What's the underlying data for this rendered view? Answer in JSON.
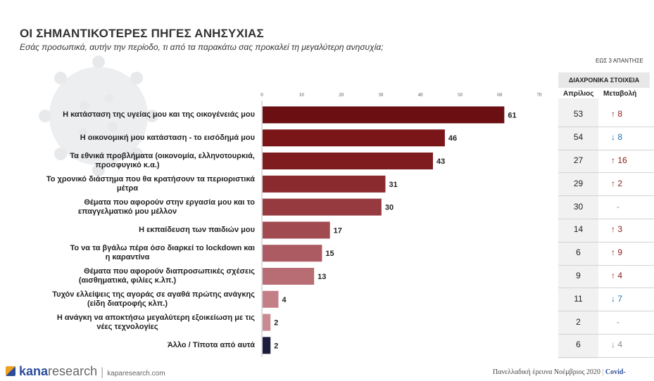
{
  "header": {
    "title": "ΟΙ ΣΗΜΑΝΤΙΚΟΤΕΡΕΣ ΠΗΓΕΣ ΑΝΗΣΥΧΙΑΣ",
    "subtitle": "Εσάς προσωπικά, αυτήν την περίοδο, τι από τα παρακάτω σας προκαλεί τη μεγαλύτερη ανησυχία;",
    "note": "ΕΩΣ 3 ΑΠΑΝΤΗΣΕ"
  },
  "history": {
    "title": "ΔΙΑΧΡΟΝΙΚΑ ΣΤΟΙΧΕΙΑ",
    "col_april": "Απρίλιος",
    "col_change": "Μεταβολή"
  },
  "colors": {
    "up": "#8b1a1a",
    "down": "#1f6fb5",
    "neutral": "#888888",
    "last_bar": "#1c1c3c"
  },
  "chart_data": {
    "type": "bar",
    "orientation": "horizontal",
    "xlim": [
      0,
      70
    ],
    "ticks": [
      0,
      10,
      20,
      30,
      40,
      50,
      60,
      70
    ],
    "categories": [
      "Η κατάσταση της υγείας μου και της οικογένειάς μου",
      "Η οικονομική μου κατάσταση - το εισόδημά μου",
      "Τα εθνικά προβλήματα (οικονομία, ελληνοτουρκιά, προσφυγικό κ.α.)",
      "Το χρονικό διάστημα που θα κρατήσουν τα περιοριστικά μέτρα",
      "Θέματα που αφορούν στην εργασία μου και το επαγγελματικό μου μέλλον",
      "Η εκπαίδευση των παιδιών μου",
      "Το να τα βγάλω πέρα όσο διαρκεί το lockdown και η καραντίνα",
      "Θέματα που αφορούν διαπροσωπικές σχέσεις (αισθηματικά, φιλίες κ.λπ.)",
      "Τυχόν ελλείψεις της αγοράς σε αγαθά πρώτης ανάγκης (είδη διατροφής κλπ.)",
      "Η ανάγκη να αποκτήσω μεγαλύτερη εξοικείωση με τις νέες τεχνολογίες",
      "Άλλο / Τίποτα από αυτά"
    ],
    "label_lines": [
      [
        "Η κατάσταση της υγείας μου και της οικογένειάς μου"
      ],
      [
        "Η οικονομική μου κατάσταση - το εισόδημά μου"
      ],
      [
        "Τα εθνικά προβλήματα (οικονομία, ελληνοτουρκιά,",
        "προσφυγικό κ.α.)"
      ],
      [
        "Το χρονικό διάστημα που θα κρατήσουν τα περιοριστικά",
        "μέτρα"
      ],
      [
        "Θέματα που αφορούν στην εργασία μου και το",
        "επαγγελματικό μου μέλλον"
      ],
      [
        "Η εκπαίδευση των παιδιών μου"
      ],
      [
        "Το να τα βγάλω πέρα όσο διαρκεί το lockdown και",
        "η καραντίνα"
      ],
      [
        "Θέματα που αφορούν διαπροσωπικές σχέσεις",
        "(αισθηματικά, φιλίες κ.λπ.)"
      ],
      [
        "Τυχόν ελλείψεις της αγοράς σε αγαθά πρώτης ανάγκης",
        "(είδη διατροφής κλπ.)"
      ],
      [
        "Η ανάγκη να αποκτήσω μεγαλύτερη εξοικείωση με τις",
        "νέες τεχνολογίες"
      ],
      [
        "Άλλο / Τίποτα από αυτά"
      ]
    ],
    "values": [
      61,
      46,
      43,
      31,
      30,
      17,
      15,
      13,
      4,
      2,
      2
    ],
    "bar_colors": [
      "#6b0f12",
      "#7a1518",
      "#7e1c20",
      "#8a2a2e",
      "#963a3f",
      "#a14a50",
      "#ad5b62",
      "#b86c73",
      "#c47f86",
      "#c98b91",
      "#1c1c3c"
    ],
    "april": [
      53,
      54,
      27,
      29,
      30,
      14,
      6,
      9,
      11,
      2,
      6
    ],
    "change": [
      {
        "dir": "up",
        "value": "8"
      },
      {
        "dir": "down",
        "value": "8"
      },
      {
        "dir": "up",
        "value": "16"
      },
      {
        "dir": "up",
        "value": "2"
      },
      {
        "dir": "none",
        "value": "-"
      },
      {
        "dir": "up",
        "value": "3"
      },
      {
        "dir": "up",
        "value": "9"
      },
      {
        "dir": "up",
        "value": "4"
      },
      {
        "dir": "down",
        "value": "7"
      },
      {
        "dir": "none",
        "value": "-"
      },
      {
        "dir": "down-gray",
        "value": "4"
      }
    ]
  },
  "footer": {
    "brand_bold": "kana",
    "brand_light": "research",
    "site": "kaparesearch.com",
    "right": "Πανελλαδική έρευνα Νοέμβριος 2020",
    "right_bold": "Covid-"
  }
}
